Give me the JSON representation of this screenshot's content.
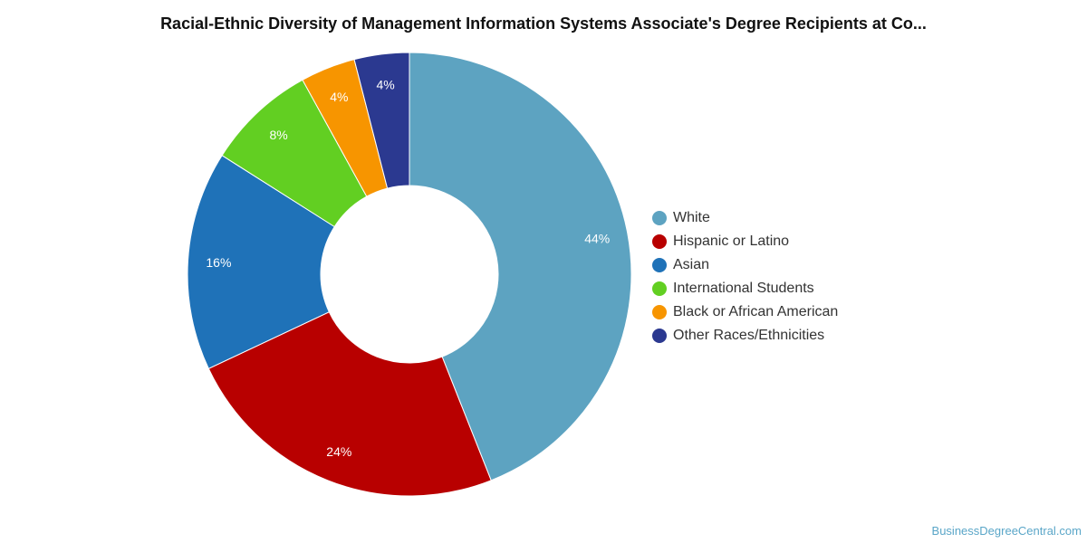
{
  "chart_data": {
    "type": "pie",
    "title": "Racial-Ethnic Diversity of Management Information Systems Associate's Degree Recipients at Co...",
    "categories": [
      "White",
      "Hispanic or Latino",
      "Asian",
      "International Students",
      "Black or African American",
      "Other Races/Ethnicities"
    ],
    "values": [
      44,
      24,
      16,
      8,
      4,
      4
    ],
    "value_labels": [
      "44%",
      "24%",
      "16%",
      "8%",
      "4%",
      "4%"
    ],
    "colors": [
      "#5da3c1",
      "#b80000",
      "#1f72b8",
      "#62cf22",
      "#f79500",
      "#2b3990"
    ],
    "donut": true,
    "legend": "right"
  },
  "credit": "BusinessDegreeCentral.com"
}
